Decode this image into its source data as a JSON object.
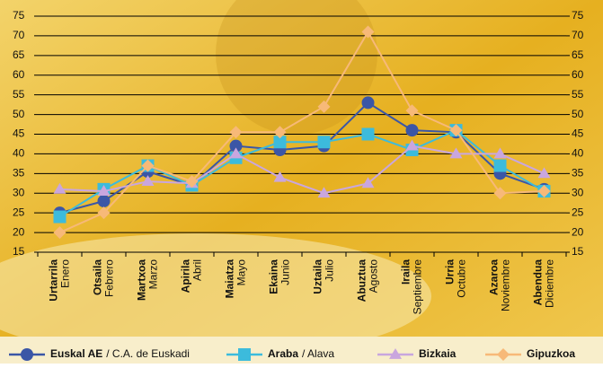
{
  "chart_data": {
    "type": "line",
    "categories": [
      "Urtarrila",
      "Otsaila",
      "Martxoa",
      "Apirila",
      "Maiatza",
      "Ekaina",
      "Uztaila",
      "Abuztua",
      "Iraila",
      "Urria",
      "Azaroa",
      "Abendua"
    ],
    "categories_es": [
      "Enero",
      "Febrero",
      "Marzo",
      "Abril",
      "Mayo",
      "Junio",
      "Julio",
      "Agosto",
      "Septiembre",
      "Octubre",
      "Noviembre",
      "Diciembre"
    ],
    "series": [
      {
        "name": "Euskal AE",
        "name_es": "/ C.A. de Euskadi",
        "color": "#3b56a6",
        "marker": "circle",
        "values": [
          25,
          28,
          35.5,
          32,
          42,
          41,
          42,
          53,
          46,
          45.5,
          35,
          31
        ]
      },
      {
        "name": "Araba",
        "name_es": "/ Alava",
        "color": "#3cbbdc",
        "marker": "square",
        "values": [
          24,
          31,
          37,
          32,
          39,
          43,
          43,
          45,
          41,
          46,
          37,
          30.5
        ]
      },
      {
        "name": "Bizkaia",
        "color": "#c9a6de",
        "marker": "triangle",
        "values": [
          31,
          30.5,
          33,
          32.5,
          40,
          34,
          30,
          32.5,
          42,
          40,
          40,
          35
        ]
      },
      {
        "name": "Gipuzkoa",
        "color": "#f7b978",
        "marker": "diamond",
        "values": [
          20,
          25,
          37,
          33,
          45.5,
          45.5,
          52,
          71,
          51,
          46,
          30,
          30.5
        ]
      }
    ],
    "ylim": [
      15,
      75
    ],
    "yticks": [
      15,
      20,
      25,
      30,
      35,
      40,
      45,
      50,
      55,
      60,
      65,
      70,
      75
    ],
    "y2lim": [
      15,
      75
    ],
    "y2ticks": [
      15,
      20,
      25,
      30,
      35,
      40,
      45,
      50,
      55,
      60,
      65,
      70,
      75
    ],
    "grid": true
  }
}
